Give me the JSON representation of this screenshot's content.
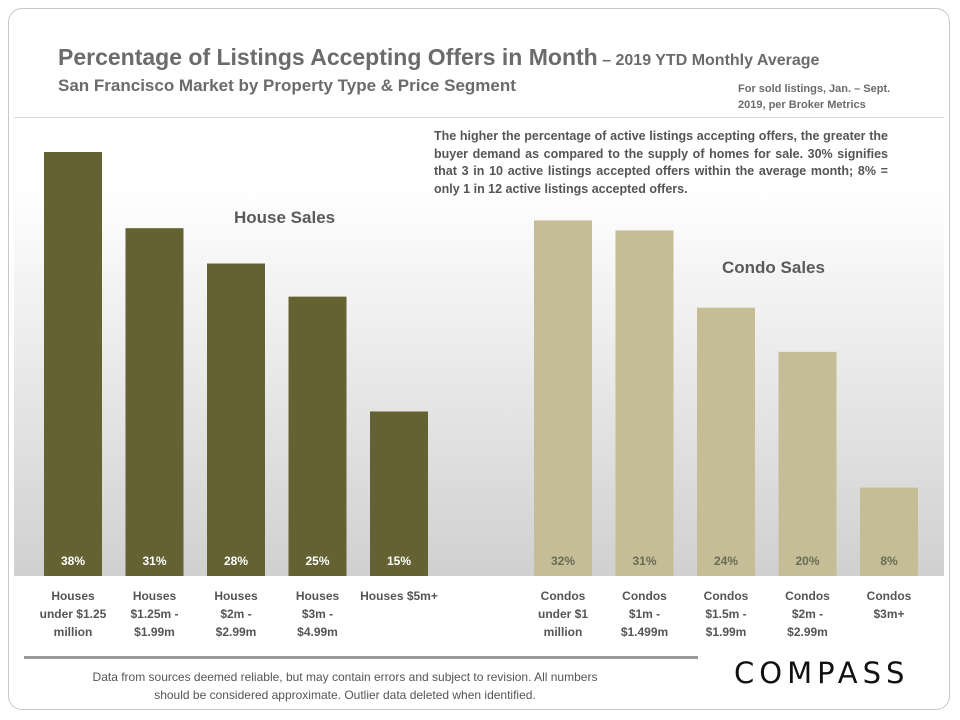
{
  "header": {
    "title": "Percentage of Listings Accepting Offers in Month",
    "title_suffix": " – 2019 YTD Monthly Average",
    "subtitle": "San Francisco Market by Property Type & Price Segment",
    "source_note": "For sold listings, Jan. – Sept. 2019, per Broker Metrics"
  },
  "explanation": "The higher the percentage of active listings accepting offers, the greater the buyer demand as compared to the supply of homes for sale. 30% signifies that 3 in 10 active listings accepted offers within the average month; 8% = only 1 in 12 active listings accepted offers.",
  "footer": {
    "disclaimer": "Data from sources deemed reliable, but may contain errors and subject to revision. All numbers should be considered approximate. Outlier data deleted when identified.",
    "logo": "COMPASS"
  },
  "colors": {
    "house": "#646232",
    "condo": "#c5bd96",
    "house_label_text": "#ffffff",
    "condo_label_text": "#6b6b55"
  },
  "chart_data": {
    "type": "bar",
    "title": "Percentage of Listings Accepting Offers in Month",
    "ylabel": "",
    "xlabel": "",
    "ylim": [
      0,
      40
    ],
    "groups": [
      {
        "name": "House Sales",
        "categories": [
          "Houses under $1.25 million",
          "Houses $1.25m - $1.99m",
          "Houses $2m - $2.99m",
          "Houses $3m - $4.99m",
          "Houses $5m+"
        ],
        "values": [
          38,
          31,
          28,
          25,
          15
        ],
        "labels": [
          "38%",
          "31%",
          "28%",
          "25%",
          "15%"
        ],
        "heights": [
          38.4,
          31.5,
          28.3,
          25.3,
          14.9
        ]
      },
      {
        "name": "Condo Sales",
        "categories": [
          "Condos under $1 million",
          "Condos $1m - $1.499m",
          "Condos $1.5m - $1.99m",
          "Condos $2m - $2.99m",
          "Condos $3m+"
        ],
        "values": [
          32,
          31,
          24,
          20,
          8
        ],
        "labels": [
          "32%",
          "31%",
          "24%",
          "20%",
          "8%"
        ],
        "heights": [
          32.2,
          31.3,
          24.3,
          20.3,
          8.0
        ]
      }
    ]
  }
}
